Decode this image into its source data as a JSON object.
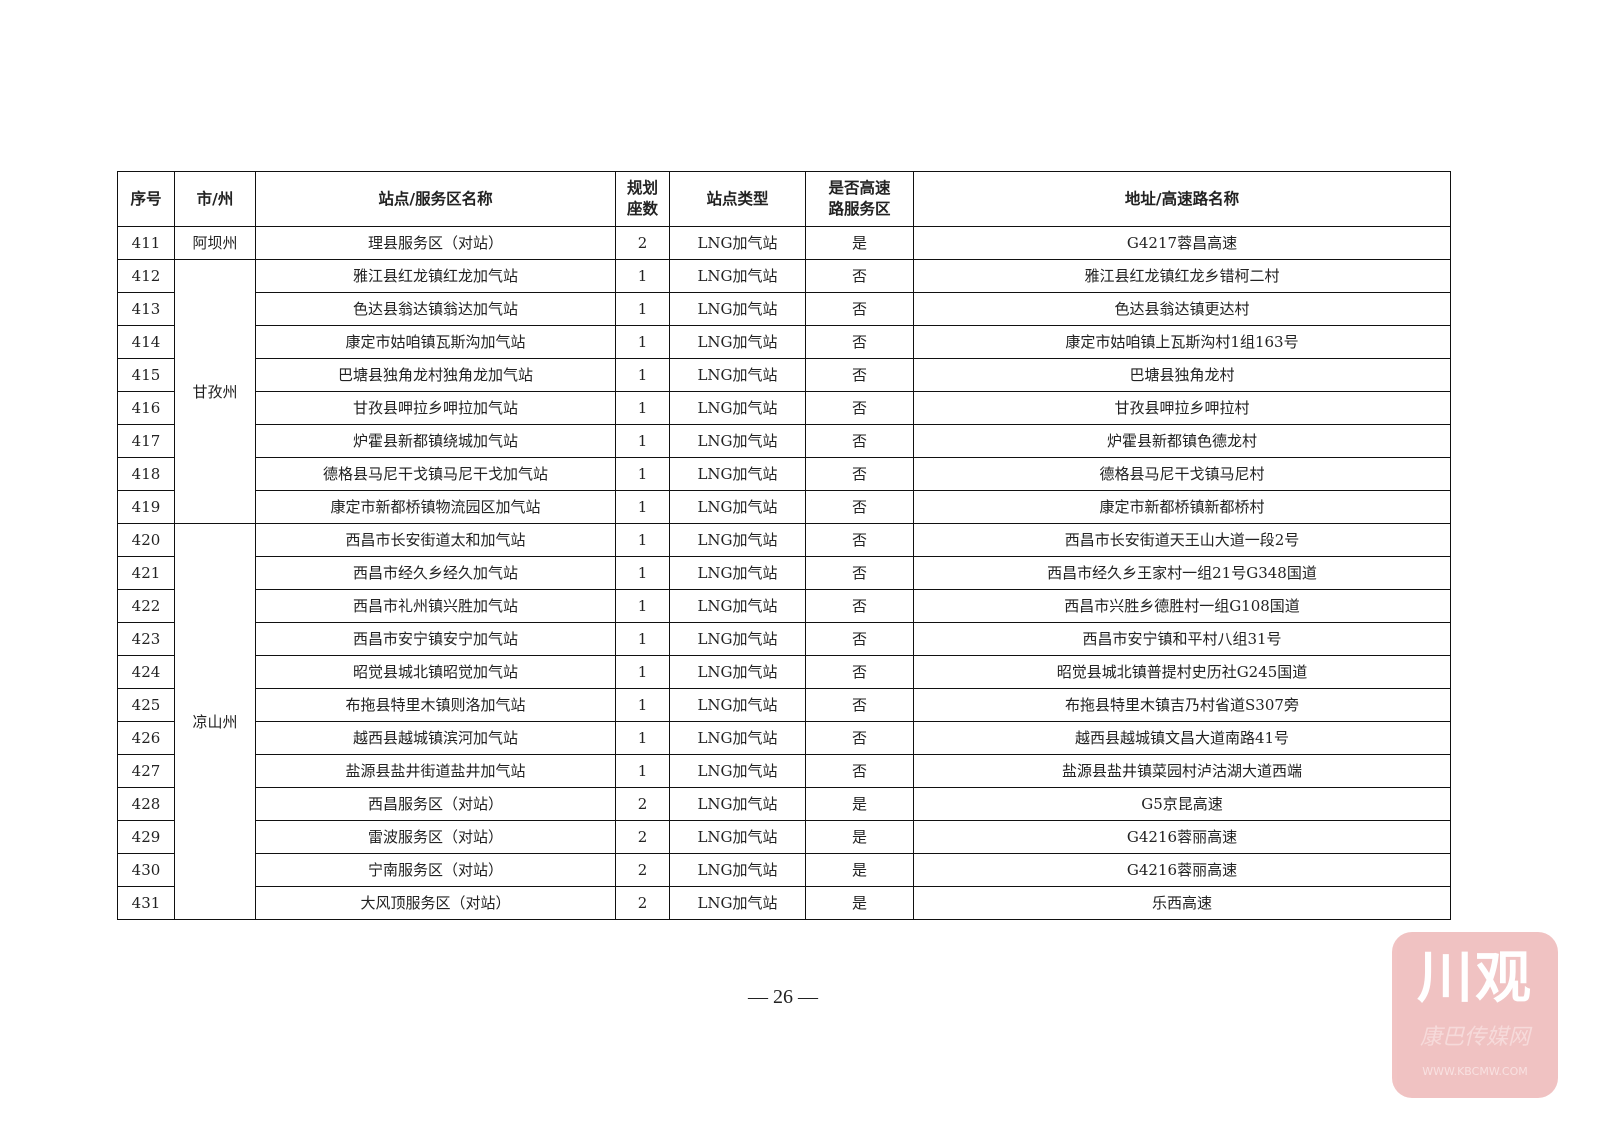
{
  "table": {
    "headers": [
      "序号",
      "市/州",
      "站点/服务区名称",
      "规划\n座数",
      "站点类型",
      "是否高速\n路服务区",
      "地址/高速路名称"
    ],
    "groups": [
      {
        "city": "阿坝州",
        "rows": [
          [
            "411",
            "理县服务区（对站）",
            "2",
            "LNG加气站",
            "是",
            "G4217蓉昌高速"
          ]
        ]
      },
      {
        "city": "甘孜州",
        "rows": [
          [
            "412",
            "雅江县红龙镇红龙加气站",
            "1",
            "LNG加气站",
            "否",
            "雅江县红龙镇红龙乡错柯二村"
          ],
          [
            "413",
            "色达县翁达镇翁达加气站",
            "1",
            "LNG加气站",
            "否",
            "色达县翁达镇更达村"
          ],
          [
            "414",
            "康定市姑咱镇瓦斯沟加气站",
            "1",
            "LNG加气站",
            "否",
            "康定市姑咱镇上瓦斯沟村1组163号"
          ],
          [
            "415",
            "巴塘县独角龙村独角龙加气站",
            "1",
            "LNG加气站",
            "否",
            "巴塘县独角龙村"
          ],
          [
            "416",
            "甘孜县呷拉乡呷拉加气站",
            "1",
            "LNG加气站",
            "否",
            "甘孜县呷拉乡呷拉村"
          ],
          [
            "417",
            "炉霍县新都镇绕城加气站",
            "1",
            "LNG加气站",
            "否",
            "炉霍县新都镇色德龙村"
          ],
          [
            "418",
            "德格县马尼干戈镇马尼干戈加气站",
            "1",
            "LNG加气站",
            "否",
            "德格县马尼干戈镇马尼村"
          ],
          [
            "419",
            "康定市新都桥镇物流园区加气站",
            "1",
            "LNG加气站",
            "否",
            "康定市新都桥镇新都桥村"
          ]
        ]
      },
      {
        "city": "凉山州",
        "rows": [
          [
            "420",
            "西昌市长安街道太和加气站",
            "1",
            "LNG加气站",
            "否",
            "西昌市长安街道天王山大道一段2号"
          ],
          [
            "421",
            "西昌市经久乡经久加气站",
            "1",
            "LNG加气站",
            "否",
            "西昌市经久乡王家村一组21号G348国道"
          ],
          [
            "422",
            "西昌市礼州镇兴胜加气站",
            "1",
            "LNG加气站",
            "否",
            "西昌市兴胜乡德胜村一组G108国道"
          ],
          [
            "423",
            "西昌市安宁镇安宁加气站",
            "1",
            "LNG加气站",
            "否",
            "西昌市安宁镇和平村八组31号"
          ],
          [
            "424",
            "昭觉县城北镇昭觉加气站",
            "1",
            "LNG加气站",
            "否",
            "昭觉县城北镇普提村史历社G245国道"
          ],
          [
            "425",
            "布拖县特里木镇则洛加气站",
            "1",
            "LNG加气站",
            "否",
            "布拖县特里木镇吉乃村省道S307旁"
          ],
          [
            "426",
            "越西县越城镇滨河加气站",
            "1",
            "LNG加气站",
            "否",
            "越西县越城镇文昌大道南路41号"
          ],
          [
            "427",
            "盐源县盐井街道盐井加气站",
            "1",
            "LNG加气站",
            "否",
            "盐源县盐井镇菜园村泸沽湖大道西端"
          ],
          [
            "428",
            "西昌服务区（对站）",
            "2",
            "LNG加气站",
            "是",
            "G5京昆高速"
          ],
          [
            "429",
            "雷波服务区（对站）",
            "2",
            "LNG加气站",
            "是",
            "G4216蓉丽高速"
          ],
          [
            "430",
            "宁南服务区（对站）",
            "2",
            "LNG加气站",
            "是",
            "G4216蓉丽高速"
          ],
          [
            "431",
            "大风顶服务区（对站）",
            "2",
            "LNG加气站",
            "是",
            "乐西高速"
          ]
        ]
      }
    ]
  },
  "footer": {
    "page_number": "— 26 —"
  },
  "watermark": {
    "logo_text": "川观",
    "sub_text": "康巴传媒网",
    "url_text": "WWW.KBCMW.COM",
    "color": "#efbcbc"
  }
}
